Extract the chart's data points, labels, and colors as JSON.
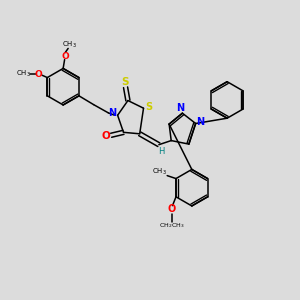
{
  "background_color": "#dcdcdc",
  "bond_color": "#000000",
  "figsize": [
    3.0,
    3.0
  ],
  "dpi": 100,
  "xlim": [
    0,
    10
  ],
  "ylim": [
    0,
    10
  ],
  "S_color": "#cccc00",
  "N_color": "#0000ff",
  "O_color": "#ff0000",
  "H_color": "#008080",
  "ring_lw": 1.1,
  "bond_lw": 1.0
}
